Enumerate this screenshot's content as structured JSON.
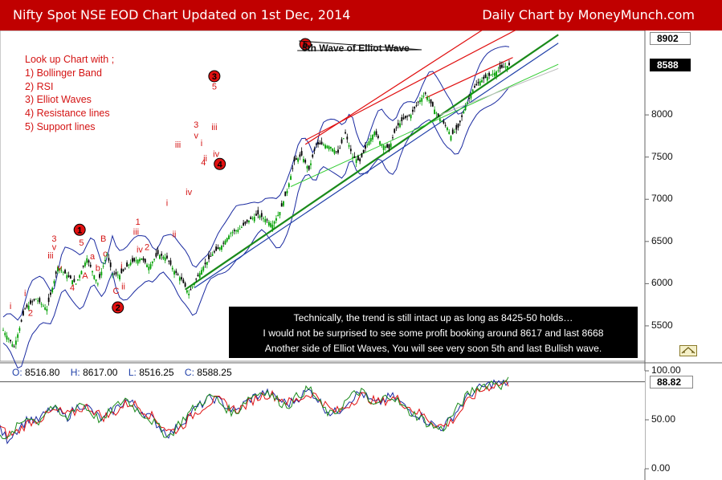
{
  "header": {
    "title": "Nifty Spot NSE EOD  Chart Updated on 1st Dec, 2014",
    "right": "Daily Chart by MoneyMunch.com"
  },
  "lookup": {
    "heading": "Look up Chart with ;",
    "items": [
      "1) Bollinger Band",
      "2) RSI",
      "3) Elliot Waves",
      "4) Resistance lines",
      "5) Support lines"
    ]
  },
  "annotation": {
    "wave5": "5th Wave of Elliot Wave"
  },
  "infobox": {
    "lines": [
      "Technically, the trend is still intact up as long as 8425-50 holds…",
      "I would not be surprised to see some profit booking around 8617 and last 8668",
      "Another side of Elliot Waves, You will see very soon 5th and last Bullish wave."
    ]
  },
  "ohlc": {
    "o_label": "O:",
    "o": "8516.80",
    "h_label": "H:",
    "h": "8617.00",
    "l_label": "L:",
    "l": "8516.25",
    "c_label": "C:",
    "c": "8588.25"
  },
  "colors": {
    "header": "#c00000",
    "bull": "#00a000",
    "bear": "#000000",
    "resistance": "#e01010",
    "support": "#1a8a1a",
    "trend_blue": "#1f3fa8",
    "bollinger": "#1a2aa0"
  },
  "chart_data": [
    {
      "type": "candlestick",
      "title": "Nifty Spot NSE EOD",
      "subtitle": "Daily Chart",
      "ylim": [
        5100,
        9000
      ],
      "yticks": [
        5500,
        6000,
        6500,
        7000,
        7500,
        8000
      ],
      "ytick_labels": [
        "5500",
        "6000",
        "6500",
        "7000",
        "7500",
        "8000"
      ],
      "highlight_levels": [
        {
          "value": 8902,
          "label": "8902",
          "style": "light"
        },
        {
          "value": 8588,
          "label": "8588",
          "style": "dark"
        }
      ],
      "close_path": [
        [
          0,
          5450
        ],
        [
          6,
          5250
        ],
        [
          12,
          5700
        ],
        [
          18,
          5820
        ],
        [
          24,
          5700
        ],
        [
          30,
          6200
        ],
        [
          34,
          6120
        ],
        [
          40,
          6000
        ],
        [
          46,
          6300
        ],
        [
          52,
          6000
        ],
        [
          57,
          6350
        ],
        [
          60,
          6120
        ],
        [
          64,
          6100
        ],
        [
          70,
          6250
        ],
        [
          76,
          6300
        ],
        [
          80,
          6200
        ],
        [
          85,
          6350
        ],
        [
          90,
          6300
        ],
        [
          94,
          6150
        ],
        [
          98,
          6050
        ],
        [
          102,
          5880
        ],
        [
          106,
          6050
        ],
        [
          110,
          6200
        ],
        [
          115,
          6350
        ],
        [
          120,
          6450
        ],
        [
          125,
          6600
        ],
        [
          130,
          6650
        ],
        [
          135,
          6750
        ],
        [
          140,
          6820
        ],
        [
          145,
          6750
        ],
        [
          148,
          6700
        ],
        [
          152,
          6850
        ],
        [
          156,
          7100
        ],
        [
          160,
          7450
        ],
        [
          164,
          7520
        ],
        [
          168,
          7350
        ],
        [
          172,
          7650
        ],
        [
          176,
          7650
        ],
        [
          180,
          7620
        ],
        [
          184,
          7550
        ],
        [
          188,
          7780
        ],
        [
          192,
          7500
        ],
        [
          196,
          7450
        ],
        [
          200,
          7650
        ],
        [
          204,
          7800
        ],
        [
          208,
          7650
        ],
        [
          212,
          7600
        ],
        [
          216,
          7850
        ],
        [
          220,
          7950
        ],
        [
          224,
          8000
        ],
        [
          228,
          8150
        ],
        [
          232,
          8250
        ],
        [
          236,
          8100
        ],
        [
          240,
          7950
        ],
        [
          244,
          7850
        ],
        [
          246,
          7750
        ],
        [
          250,
          7850
        ],
        [
          254,
          8100
        ],
        [
          258,
          8300
        ],
        [
          262,
          8400
        ],
        [
          266,
          8450
        ],
        [
          270,
          8500
        ],
        [
          274,
          8560
        ],
        [
          278,
          8588
        ]
      ],
      "bollinger_half_width": 280,
      "support_lines": [
        {
          "label": "green support",
          "from": [
            100,
            5930
          ],
          "to": [
            305,
            8950
          ]
        },
        {
          "label": "blue support",
          "from": [
            105,
            5950
          ],
          "to": [
            305,
            8850
          ]
        },
        {
          "label": "light green",
          "from": [
            158,
            7150
          ],
          "to": [
            305,
            8600
          ]
        },
        {
          "label": "grey",
          "from": [
            240,
            8000
          ],
          "to": [
            305,
            8550
          ]
        }
      ],
      "resistance_lines": [
        {
          "label": "resistance 1",
          "from": [
            166,
            7650
          ],
          "to": [
            270,
            9100
          ]
        },
        {
          "label": "resistance 2",
          "from": [
            166,
            7700
          ],
          "to": [
            290,
            9100
          ]
        },
        {
          "label": "resistance 3",
          "from": [
            232,
            8200
          ],
          "to": [
            280,
            8680
          ]
        }
      ],
      "wave_labels": [
        {
          "x": 4,
          "p": 5700,
          "text": "i",
          "circle": false
        },
        {
          "x": 12,
          "p": 5850,
          "text": "i",
          "circle": false
        },
        {
          "x": 15,
          "p": 5620,
          "text": "2",
          "circle": false
        },
        {
          "x": 26,
          "p": 6300,
          "text": "iii",
          "circle": false
        },
        {
          "x": 28,
          "p": 6500,
          "text": "3",
          "circle": false
        },
        {
          "x": 28,
          "p": 6400,
          "text": "v",
          "circle": false
        },
        {
          "x": 31,
          "p": 6150,
          "text": "v",
          "circle": false
        },
        {
          "x": 38,
          "p": 5920,
          "text": "4",
          "circle": false
        },
        {
          "x": 43,
          "p": 6450,
          "text": "5",
          "circle": false
        },
        {
          "x": 42,
          "p": 6600,
          "text": "1",
          "circle": true
        },
        {
          "x": 49,
          "p": 6290,
          "text": "a",
          "circle": false
        },
        {
          "x": 52,
          "p": 6150,
          "text": "b",
          "circle": false
        },
        {
          "x": 55,
          "p": 6500,
          "text": "B",
          "circle": false
        },
        {
          "x": 56,
          "p": 6320,
          "text": "c",
          "circle": false
        },
        {
          "x": 45,
          "p": 6060,
          "text": "A",
          "circle": false
        },
        {
          "x": 62,
          "p": 5880,
          "text": "C",
          "circle": false
        },
        {
          "x": 63,
          "p": 5680,
          "text": "2",
          "circle": true
        },
        {
          "x": 65,
          "p": 6180,
          "text": "i",
          "circle": false
        },
        {
          "x": 66,
          "p": 5930,
          "text": "ii",
          "circle": false
        },
        {
          "x": 74,
          "p": 6700,
          "text": "1",
          "circle": false
        },
        {
          "x": 73,
          "p": 6580,
          "text": "iii",
          "circle": false
        },
        {
          "x": 75,
          "p": 6370,
          "text": "iv",
          "circle": false
        },
        {
          "x": 79,
          "p": 6400,
          "text": "2",
          "circle": false
        },
        {
          "x": 90,
          "p": 6920,
          "text": "i",
          "circle": false
        },
        {
          "x": 94,
          "p": 6550,
          "text": "ii",
          "circle": false
        },
        {
          "x": 96,
          "p": 7610,
          "text": "iii",
          "circle": false
        },
        {
          "x": 102,
          "p": 7050,
          "text": "iv",
          "circle": false
        },
        {
          "x": 106,
          "p": 7850,
          "text": "3",
          "circle": false
        },
        {
          "x": 106,
          "p": 7720,
          "text": "v",
          "circle": false
        },
        {
          "x": 109,
          "p": 7630,
          "text": "i",
          "circle": false
        },
        {
          "x": 110,
          "p": 7400,
          "text": "4",
          "circle": false
        },
        {
          "x": 111,
          "p": 7450,
          "text": "ii",
          "circle": false
        },
        {
          "x": 116,
          "p": 7820,
          "text": "iii",
          "circle": false
        },
        {
          "x": 117,
          "p": 7500,
          "text": "iv",
          "circle": false
        },
        {
          "x": 116,
          "p": 8300,
          "text": "5",
          "circle": false
        },
        {
          "x": 116,
          "p": 8420,
          "text": "3",
          "circle": true
        },
        {
          "x": 119,
          "p": 7380,
          "text": "4",
          "circle": true
        },
        {
          "x": 166,
          "p": 8800,
          "text": "5",
          "circle": true
        }
      ]
    },
    {
      "type": "line",
      "title": "RSI",
      "ylim": [
        0,
        100
      ],
      "yticks": [
        0,
        50,
        100
      ],
      "ytick_labels": [
        "0.00",
        "50.00",
        "100.00"
      ],
      "current_value": 88.82,
      "current_label": "88.82",
      "series": [
        {
          "name": "RSI",
          "color": "#1a2aa0",
          "values": [
            40,
            30,
            38,
            45,
            52,
            48,
            55,
            62,
            58,
            52,
            60,
            66,
            62,
            55,
            50,
            58,
            63,
            70,
            66,
            60,
            55,
            48,
            40,
            35,
            42,
            50,
            58,
            64,
            70,
            72,
            68,
            62,
            58,
            66,
            72,
            75,
            78,
            74,
            70,
            66,
            70,
            76,
            80,
            72,
            62,
            56,
            60,
            68,
            74,
            78,
            70,
            66,
            70,
            74,
            70,
            62,
            58,
            54,
            48,
            44,
            42,
            50,
            60,
            70,
            78,
            82,
            85,
            88,
            86,
            89
          ]
        },
        {
          "name": "RSI signal",
          "color": "#e01010",
          "values": [
            42,
            35,
            36,
            42,
            48,
            50,
            53,
            58,
            59,
            55,
            57,
            62,
            63,
            58,
            53,
            55,
            60,
            66,
            67,
            62,
            57,
            51,
            44,
            38,
            40,
            46,
            54,
            60,
            66,
            70,
            69,
            64,
            60,
            63,
            69,
            73,
            76,
            75,
            72,
            68,
            69,
            73,
            77,
            74,
            66,
            59,
            59,
            64,
            70,
            75,
            72,
            68,
            69,
            72,
            71,
            65,
            60,
            56,
            51,
            46,
            43,
            47,
            55,
            65,
            73,
            79,
            83,
            86,
            86,
            88
          ]
        },
        {
          "name": "RSI fast",
          "color": "#1a8a1a",
          "values": [
            38,
            28,
            40,
            48,
            55,
            46,
            57,
            64,
            56,
            50,
            62,
            68,
            60,
            53,
            48,
            60,
            65,
            72,
            64,
            58,
            53,
            46,
            38,
            33,
            44,
            52,
            60,
            66,
            72,
            74,
            66,
            60,
            56,
            68,
            74,
            77,
            80,
            73,
            68,
            64,
            72,
            78,
            82,
            70,
            60,
            54,
            62,
            70,
            76,
            80,
            68,
            64,
            72,
            76,
            68,
            60,
            56,
            52,
            46,
            42,
            40,
            52,
            62,
            72,
            80,
            84,
            86,
            89,
            85,
            90
          ]
        }
      ]
    }
  ]
}
